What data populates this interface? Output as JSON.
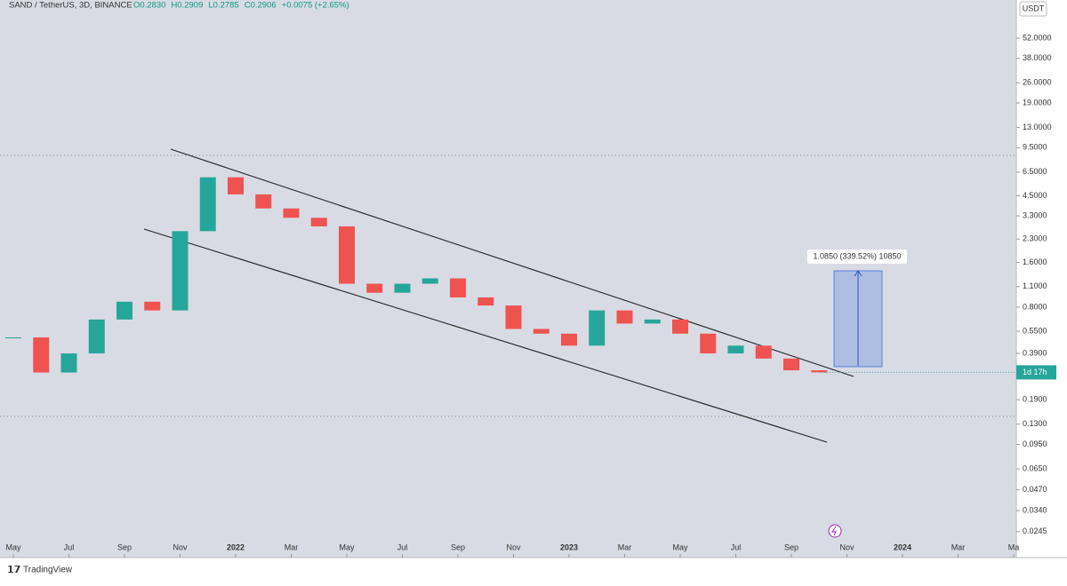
{
  "chart_data": {
    "type": "candlestick",
    "title": "SAND / TetherUS, 3D, BINANCE",
    "legend_values": [
      "O0.2830",
      "H0.2909",
      "L0.2785",
      "C0.2906",
      "+0.0075 (+2.65%)"
    ],
    "currency": "USDT",
    "last_label": "1d 17h",
    "annotation": "1.0850 (339.52%) 10850",
    "brand": "TradingView",
    "log_scale": true,
    "up_color": "#26a69a",
    "down_color": "#ef5350",
    "x": [
      "2021-05",
      "2021-06",
      "2021-07",
      "2021-08",
      "2021-09",
      "2021-10",
      "2021-11",
      "2021-12",
      "2022-01",
      "2022-02",
      "2022-03",
      "2022-04",
      "2022-05",
      "2022-06",
      "2022-07",
      "2022-08",
      "2022-09",
      "2022-10",
      "2022-11",
      "2022-12",
      "2023-01",
      "2023-02",
      "2023-03",
      "2023-04",
      "2023-05",
      "2023-06",
      "2023-07",
      "2023-08",
      "2023-09",
      "2023-10"
    ],
    "values": [
      0.5,
      0.29,
      0.39,
      0.66,
      0.87,
      0.76,
      2.6,
      6.0,
      4.6,
      3.7,
      3.2,
      2.8,
      1.15,
      1.0,
      1.15,
      1.25,
      0.93,
      0.82,
      0.57,
      0.53,
      0.44,
      0.76,
      0.62,
      0.66,
      0.53,
      0.39,
      0.44,
      0.36,
      0.3,
      0.2906
    ],
    "xlim": [
      "2021-05",
      "2024-05"
    ],
    "xticks": [
      {
        "value": "2021-05",
        "label": "May"
      },
      {
        "value": "2021-07",
        "label": "Jul"
      },
      {
        "value": "2021-09",
        "label": "Sep"
      },
      {
        "value": "2021-11",
        "label": "Nov"
      },
      {
        "value": "2022-01",
        "label": "2022"
      },
      {
        "value": "2022-03",
        "label": "Mar"
      },
      {
        "value": "2022-05",
        "label": "May"
      },
      {
        "value": "2022-07",
        "label": "Jul"
      },
      {
        "value": "2022-09",
        "label": "Sep"
      },
      {
        "value": "2022-11",
        "label": "Nov"
      },
      {
        "value": "2023-01",
        "label": "2023"
      },
      {
        "value": "2023-03",
        "label": "Mar"
      },
      {
        "value": "2023-05",
        "label": "May"
      },
      {
        "value": "2023-07",
        "label": "Jul"
      },
      {
        "value": "2023-09",
        "label": "Sep"
      },
      {
        "value": "2023-11",
        "label": "Nov"
      },
      {
        "value": "2024-01",
        "label": "2024"
      },
      {
        "value": "2024-03",
        "label": "Mar"
      },
      {
        "value": "2024-05",
        "label": "Ma"
      }
    ],
    "ylim": [
      0.0164,
      94
    ],
    "yticks": [
      {
        "value": 52,
        "label": "52.0000"
      },
      {
        "value": 38,
        "label": "38.0000"
      },
      {
        "value": 26,
        "label": "26.0000"
      },
      {
        "value": 19,
        "label": "19.0000"
      },
      {
        "value": 13,
        "label": "13.0000"
      },
      {
        "value": 9.5,
        "label": "9.5000"
      },
      {
        "value": 6.5,
        "label": "6.5000"
      },
      {
        "value": 4.5,
        "label": "4.5000"
      },
      {
        "value": 3.3,
        "label": "3.3000"
      },
      {
        "value": 2.3,
        "label": "2.3000"
      },
      {
        "value": 1.6,
        "label": "1.6000"
      },
      {
        "value": 1.1,
        "label": "1.1000"
      },
      {
        "value": 0.8,
        "label": "0.8000"
      },
      {
        "value": 0.55,
        "label": "0.5500"
      },
      {
        "value": 0.39,
        "label": "0.3900"
      },
      {
        "value": 0.19,
        "label": "0.1900"
      },
      {
        "value": 0.13,
        "label": "0.1300"
      },
      {
        "value": 0.095,
        "label": "0.0950"
      },
      {
        "value": 0.065,
        "label": "0.0650"
      },
      {
        "value": 0.047,
        "label": "0.0470"
      },
      {
        "value": 0.034,
        "label": "0.0340"
      },
      {
        "value": 0.0245,
        "label": "0.0245"
      }
    ]
  }
}
